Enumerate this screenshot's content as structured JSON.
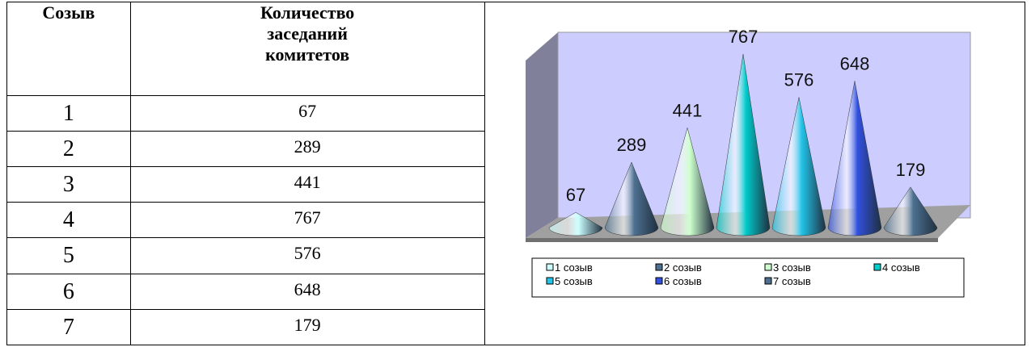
{
  "table": {
    "header": [
      "Созыв",
      "Количество заседаний комитетов"
    ],
    "rows": [
      [
        "1",
        "67"
      ],
      [
        "2",
        "289"
      ],
      [
        "3",
        "441"
      ],
      [
        "4",
        "767"
      ],
      [
        "5",
        "576"
      ],
      [
        "6",
        "648"
      ],
      [
        "7",
        "179"
      ]
    ]
  },
  "chart_data": {
    "type": "cone",
    "categories": [
      "1 созыв",
      "2 созыв",
      "3 созыв",
      "4 созыв",
      "5 созыв",
      "6 созыв",
      "7 созыв"
    ],
    "values": [
      67,
      289,
      441,
      767,
      576,
      648,
      179
    ],
    "colors": [
      "#ccffff",
      "#4d7090",
      "#ccffcc",
      "#00cccc",
      "#22c4e8",
      "#3050e0",
      "#4d7090"
    ]
  }
}
